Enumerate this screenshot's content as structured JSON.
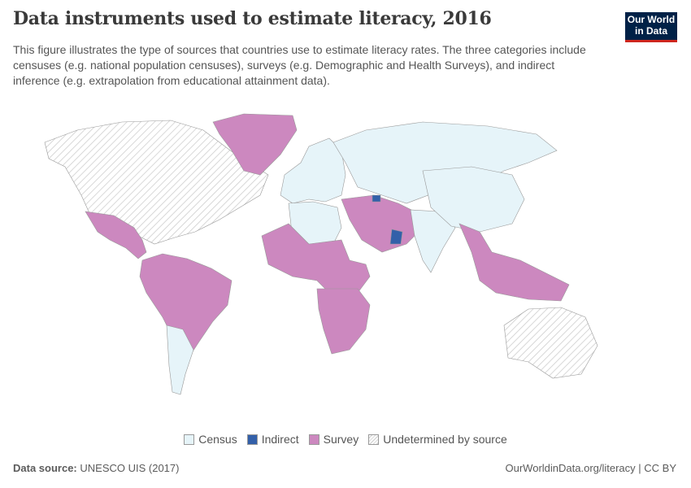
{
  "title": "Data instruments used to estimate literacy, 2016",
  "subtitle": "This figure illustrates the type of sources that countries use to estimate literacy rates. The three categories include censuses (e.g. national population censuses), surveys (e.g. Demographic and Health Surveys), and indirect inference (e.g. extrapolation from educational attainment data).",
  "logo": {
    "line1": "Our World",
    "line2": "in Data"
  },
  "legend": [
    {
      "label": "Census",
      "color": "#e6f4f9"
    },
    {
      "label": "Indirect",
      "color": "#3360a9"
    },
    {
      "label": "Survey",
      "color": "#cc88bf"
    },
    {
      "label": "Undetermined by source",
      "color": "hatched"
    }
  ],
  "footer": {
    "source_label": "Data source:",
    "source": "UNESCO UIS (2017)",
    "credit": "OurWorldinData.org/literacy | CC BY"
  },
  "regions": [
    {
      "name": "North America",
      "category": "Undetermined by source"
    },
    {
      "name": "Greenland",
      "category": "Survey"
    },
    {
      "name": "Mexico & Central America",
      "category": "Survey"
    },
    {
      "name": "South America",
      "category": "Survey"
    },
    {
      "name": "Argentina & Chile",
      "category": "Census"
    },
    {
      "name": "Europe",
      "category": "Census"
    },
    {
      "name": "Russia & Central Asia",
      "category": "Census"
    },
    {
      "name": "North Africa",
      "category": "Census"
    },
    {
      "name": "West & Central Africa",
      "category": "Survey"
    },
    {
      "name": "Southern Africa",
      "category": "Survey"
    },
    {
      "name": "Middle East",
      "category": "Survey"
    },
    {
      "name": "Oman",
      "category": "Indirect"
    },
    {
      "name": "Azerbaijan",
      "category": "Indirect"
    },
    {
      "name": "India",
      "category": "Census"
    },
    {
      "name": "China",
      "category": "Census"
    },
    {
      "name": "Southeast Asia",
      "category": "Survey"
    },
    {
      "name": "Australia",
      "category": "Undetermined by source"
    }
  ]
}
